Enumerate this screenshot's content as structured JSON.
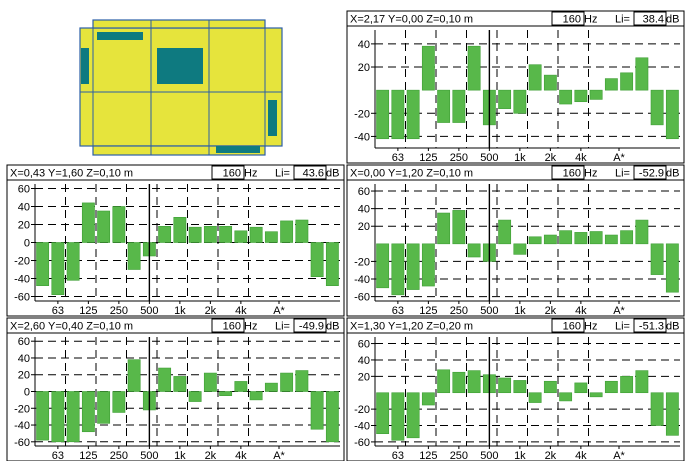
{
  "colors": {
    "bar": "#58b84a",
    "bar_stroke": "#3f9f36",
    "room_fill": "#e6e43c",
    "room_line": "#2b5ea8",
    "object_fill": "#0e7a80",
    "axis": "#000000",
    "grid": "#000000"
  },
  "plan": {
    "name": "room-floor-plan",
    "objects": [
      "top-left-block",
      "center-block",
      "left-wall-block",
      "right-wall-block",
      "bottom-block"
    ]
  },
  "chart_data": [
    {
      "type": "bar",
      "header": {
        "position": "X=2,17 Y=0,00 Z=0,10 m",
        "frequency": "160",
        "freq_unit": "Hz",
        "level_label": "Li=",
        "level": "38.4",
        "level_unit": "dB"
      },
      "y_ticks": [
        "40",
        "20",
        "-20",
        "-40"
      ],
      "y_tick_values": [
        40,
        20,
        -20,
        -40
      ],
      "ylim": [
        -50,
        52
      ],
      "x_tick_labels": [
        "63",
        "125",
        "250",
        "500",
        "1k",
        "2k",
        "4k",
        "A*"
      ],
      "cursor_band": 7,
      "values": [
        -42,
        -42,
        -42,
        38,
        -28,
        -28,
        38,
        -30,
        -16,
        -20,
        22,
        13,
        -12,
        -10,
        -8,
        10,
        15,
        28,
        -30,
        -42
      ]
    },
    {
      "type": "bar",
      "header": {
        "position": "X=0,43 Y=1,60 Z=0,10 m",
        "frequency": "160",
        "freq_unit": "Hz",
        "level_label": "Li=",
        "level": "43.6",
        "level_unit": "dB"
      },
      "y_ticks": [
        "60",
        "40",
        "20",
        "0",
        "-20",
        "-40",
        "-60"
      ],
      "y_tick_values": [
        60,
        40,
        20,
        0,
        -20,
        -40,
        -60
      ],
      "ylim": [
        -65,
        65
      ],
      "x_tick_labels": [
        "63",
        "125",
        "250",
        "500",
        "1k",
        "2k",
        "4k",
        "A*"
      ],
      "cursor_band": 7,
      "values": [
        -48,
        -58,
        -42,
        44,
        35,
        40,
        -30,
        -15,
        18,
        28,
        17,
        18,
        18,
        13,
        17,
        12,
        24,
        25,
        -38,
        -48
      ]
    },
    {
      "type": "bar",
      "header": {
        "position": "X=0,00 Y=1,20 Z=0,10 m",
        "frequency": "160",
        "freq_unit": "Hz",
        "level_label": "Li=",
        "level": "-52.9",
        "level_unit": "dB"
      },
      "y_ticks": [
        "60",
        "40",
        "20",
        "-20",
        "-40",
        "-60"
      ],
      "y_tick_values": [
        60,
        40,
        20,
        -20,
        -40,
        -60
      ],
      "ylim": [
        -65,
        68
      ],
      "x_tick_labels": [
        "63",
        "125",
        "250",
        "500",
        "1k",
        "2k",
        "4k",
        "A*"
      ],
      "cursor_band": 7,
      "values": [
        -50,
        -58,
        -52,
        -48,
        35,
        38,
        -15,
        -20,
        27,
        -12,
        8,
        10,
        15,
        13,
        14,
        10,
        15,
        27,
        -35,
        -55
      ]
    },
    {
      "type": "bar",
      "header": {
        "position": "X=2,60 Y=0,40 Z=0,10 m",
        "frequency": "160",
        "freq_unit": "Hz",
        "level_label": "Li=",
        "level": "-49.9",
        "level_unit": "dB"
      },
      "y_ticks": [
        "60",
        "40",
        "20",
        "0",
        "-20",
        "-40",
        "-60"
      ],
      "y_tick_values": [
        60,
        40,
        20,
        0,
        -20,
        -40,
        -60
      ],
      "ylim": [
        -65,
        65
      ],
      "x_tick_labels": [
        "63",
        "125",
        "250",
        "500",
        "1k",
        "2k",
        "4k",
        "A*"
      ],
      "cursor_band": 7,
      "values": [
        -58,
        -60,
        -60,
        -48,
        -38,
        -25,
        38,
        -22,
        28,
        18,
        -12,
        22,
        -5,
        12,
        -10,
        10,
        22,
        25,
        -45,
        -60
      ]
    },
    {
      "type": "bar",
      "header": {
        "position": "X=1,30 Y=1,20 Z=0,20 m",
        "frequency": "160",
        "freq_unit": "Hz",
        "level_label": "Li=",
        "level": "-51.3",
        "level_unit": "dB"
      },
      "y_ticks": [
        "60",
        "40",
        "20",
        "-20",
        "-40",
        "-60"
      ],
      "y_tick_values": [
        60,
        40,
        20,
        -20,
        -40,
        -60
      ],
      "ylim": [
        -65,
        68
      ],
      "x_tick_labels": [
        "63",
        "125",
        "250",
        "500",
        "1k",
        "2k",
        "4k",
        "A*"
      ],
      "cursor_band": 7,
      "values": [
        -50,
        -58,
        -55,
        -15,
        28,
        25,
        27,
        22,
        18,
        15,
        -12,
        14,
        -10,
        12,
        -5,
        14,
        20,
        27,
        -40,
        -52
      ]
    }
  ]
}
